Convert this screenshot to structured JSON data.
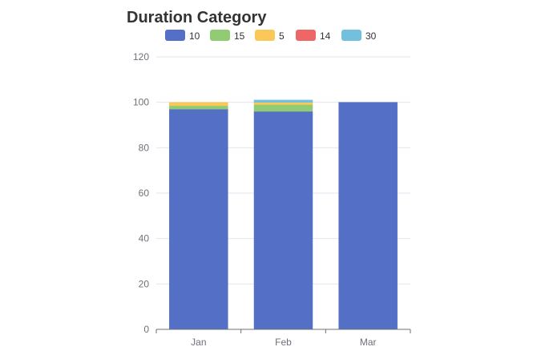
{
  "chart_data": {
    "type": "bar",
    "stacked": true,
    "title": "Duration Category",
    "categories": [
      "Jan",
      "Feb",
      "Mar"
    ],
    "series": [
      {
        "name": "10",
        "color": "#5470c6",
        "values": [
          97,
          96,
          100
        ]
      },
      {
        "name": "15",
        "color": "#91cc75",
        "values": [
          1.5,
          3,
          0
        ]
      },
      {
        "name": "5",
        "color": "#fac858",
        "values": [
          1.5,
          1,
          0
        ]
      },
      {
        "name": "14",
        "color": "#ee6666",
        "values": [
          0,
          0,
          0
        ]
      },
      {
        "name": "30",
        "color": "#73c0de",
        "values": [
          0,
          1,
          0
        ]
      }
    ],
    "ylim": [
      0,
      120
    ],
    "yticks": [
      0,
      20,
      40,
      60,
      80,
      100,
      120
    ],
    "grid": true,
    "legend_position": "top-center",
    "xlabel": "",
    "ylabel": ""
  }
}
